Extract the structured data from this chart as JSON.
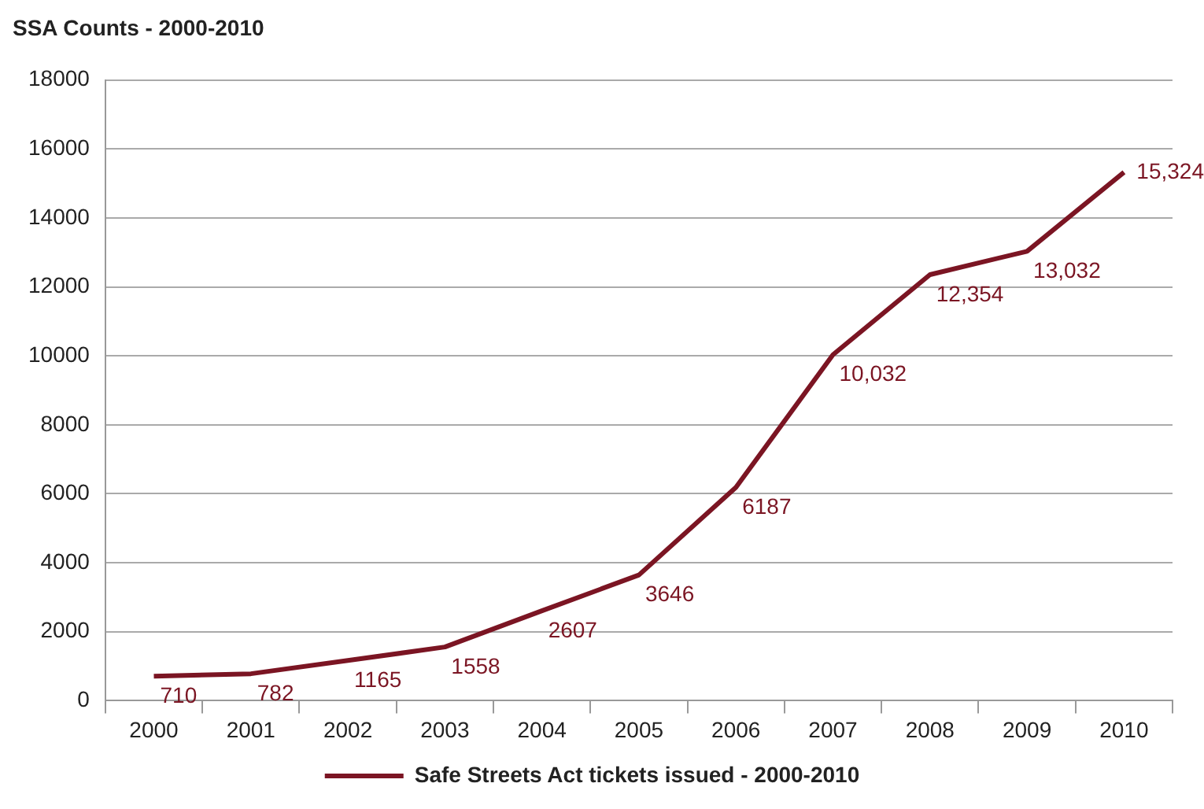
{
  "chart_data": {
    "type": "line",
    "title": "SSA Counts - 2000-2010",
    "categories": [
      "2000",
      "2001",
      "2002",
      "2003",
      "2004",
      "2005",
      "2006",
      "2007",
      "2008",
      "2009",
      "2010"
    ],
    "series": [
      {
        "name": "Safe Streets Act tickets issued - 2000-2010",
        "color": "#7b1523",
        "values": [
          710,
          782,
          1165,
          1558,
          2607,
          3646,
          6187,
          10032,
          12354,
          13032,
          15324
        ],
        "value_labels": [
          "710",
          "782",
          "1165",
          "1558",
          "2607",
          "3646",
          "6187",
          "10,032",
          "12,354",
          "13,032",
          "15,324"
        ]
      }
    ],
    "ylim": [
      0,
      18000
    ],
    "yticks": [
      0,
      2000,
      4000,
      6000,
      8000,
      10000,
      12000,
      14000,
      16000,
      18000
    ],
    "grid": "y",
    "legend": "bottom",
    "marker": "none",
    "line_style": "solid"
  }
}
